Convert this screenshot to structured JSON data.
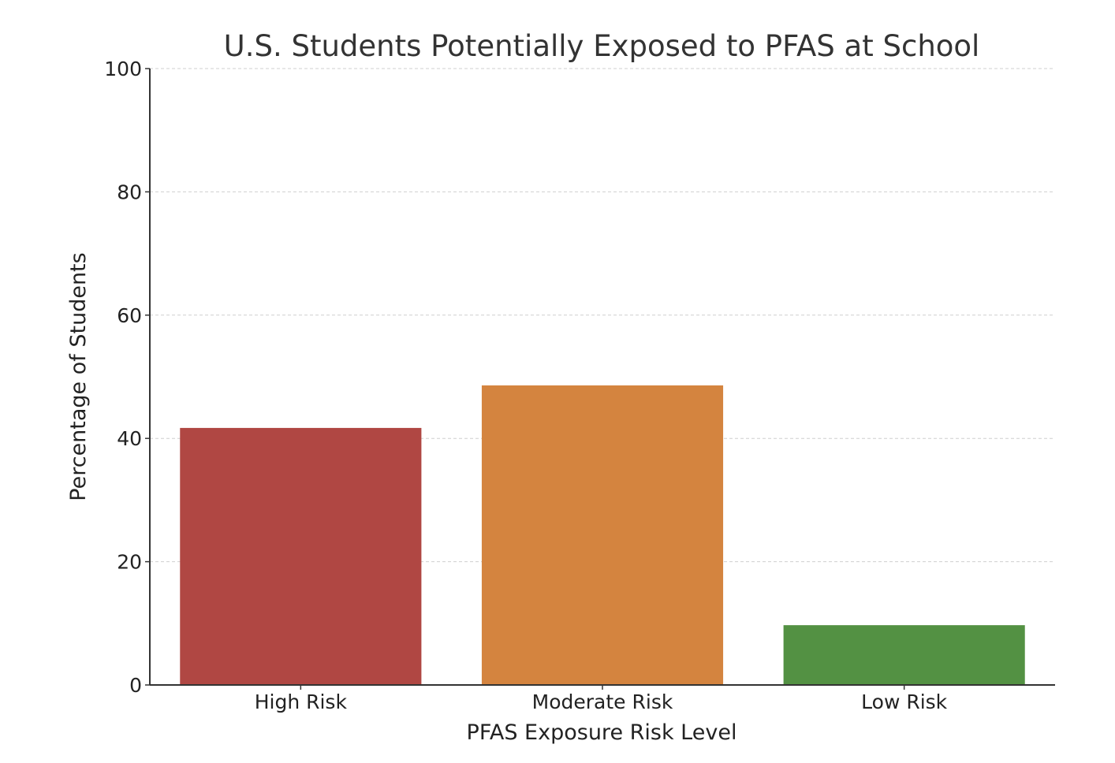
{
  "chart_data": {
    "type": "bar",
    "title": "U.S. Students Potentially Exposed to PFAS at School",
    "xlabel": "PFAS Exposure Risk Level",
    "ylabel": "Percentage of Students",
    "categories": [
      "High Risk",
      "Moderate Risk",
      "Low Risk"
    ],
    "values": [
      41.7,
      48.6,
      9.7
    ],
    "colors": [
      "#b04743",
      "#d4843f",
      "#539143"
    ],
    "ylim": [
      0,
      100
    ],
    "yticks": [
      0,
      20,
      40,
      60,
      80,
      100
    ],
    "grid": "y-dashed",
    "legend": "none"
  }
}
